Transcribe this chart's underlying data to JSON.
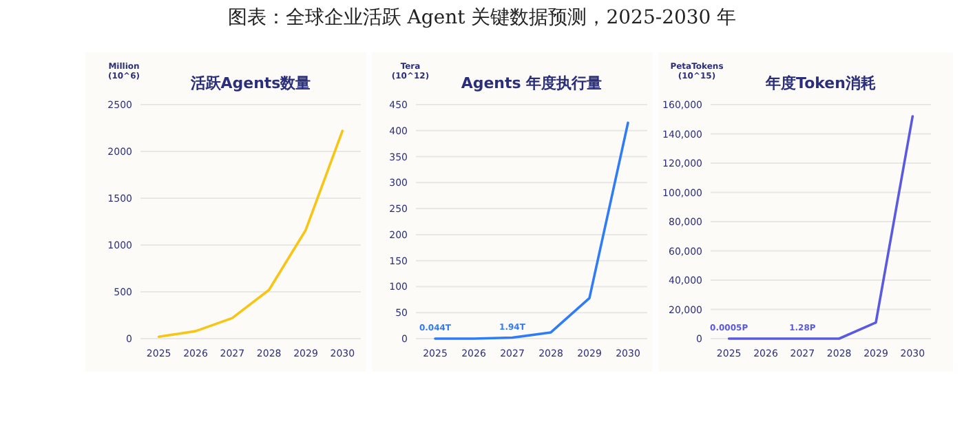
{
  "chart_data": [
    {
      "type": "line",
      "title": "活跃Agents数量",
      "ylabel": "Million (10^6)",
      "annotations": [
        "图表：全球企业活跃 Agent 关键数据预测，2025-2030 年"
      ],
      "categories": [
        "2025",
        "2026",
        "2027",
        "2028",
        "2029",
        "2030"
      ],
      "series": [
        {
          "color": "#f7c515",
          "values": [
            20,
            80,
            220,
            520,
            1160,
            2220
          ]
        }
      ],
      "ylim": [
        0,
        2500
      ],
      "yticks": [
        0,
        500,
        1000,
        1500,
        2000,
        2500
      ],
      "grid": "y"
    },
    {
      "type": "line",
      "title": "Agents 年度执行量",
      "ylabel": "Tera (10^12)",
      "categories": [
        "2025",
        "2026",
        "2027",
        "2028",
        "2029",
        "2030"
      ],
      "series": [
        {
          "color": "#2f7cf6",
          "values": [
            0.044,
            0,
            1.94,
            12,
            78,
            415
          ],
          "value_labels": [
            "0.044T",
            null,
            "1.94T",
            null,
            null,
            null
          ]
        }
      ],
      "ylim": [
        0,
        450
      ],
      "yticks": [
        0,
        50,
        100,
        150,
        200,
        250,
        300,
        350,
        400,
        450
      ],
      "grid": "y"
    },
    {
      "type": "line",
      "title": "年度Token消耗",
      "ylabel": "PetaTokens (10^15)",
      "categories": [
        "2025",
        "2026",
        "2027",
        "2028",
        "2029",
        "2030"
      ],
      "series": [
        {
          "color": "#5a5ae0",
          "values": [
            0.0005,
            0,
            1.28,
            0,
            11000,
            152000
          ],
          "value_labels": [
            "0.0005P",
            null,
            "1.28P",
            null,
            null,
            null
          ]
        }
      ],
      "ylim": [
        0,
        160000
      ],
      "yticks": [
        0,
        {
          "value": 20000,
          "label": "20,000"
        },
        {
          "value": 40000,
          "label": "40,000"
        },
        {
          "value": 60000,
          "label": "60,000"
        },
        {
          "value": 80000,
          "label": "80,000"
        },
        {
          "value": 100000,
          "label": "100,000"
        },
        {
          "value": 120000,
          "label": "120,000"
        },
        {
          "value": 140000,
          "label": "140,000"
        },
        {
          "value": 160000,
          "label": "160,000"
        }
      ],
      "grid": "y"
    }
  ]
}
